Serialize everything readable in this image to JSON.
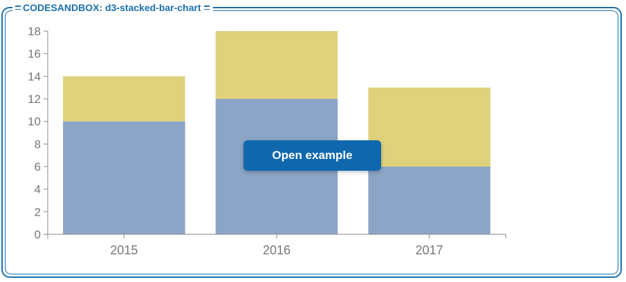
{
  "header": {
    "title": "CODESANDBOX: d3-stacked-bar-chart"
  },
  "overlay": {
    "open_label": "Open example"
  },
  "colors": {
    "frame": "#1a6fb0",
    "button": "#0f68ad",
    "series_bottom": "#8ca5c6",
    "series_top": "#e0d17d",
    "axis": "#8a8a8a",
    "tick_text": "#777777"
  },
  "chart_data": {
    "type": "bar",
    "stacked": true,
    "categories": [
      "2015",
      "2016",
      "2017"
    ],
    "series": [
      {
        "values": [
          10,
          12,
          6
        ],
        "color": "#8ca5c6"
      },
      {
        "values": [
          4,
          6,
          7
        ],
        "color": "#e0d17d"
      }
    ],
    "ylim": [
      0,
      18
    ],
    "yticks": [
      "0",
      "2",
      "4",
      "6",
      "8",
      "10",
      "12",
      "14",
      "16",
      "18"
    ],
    "grid": false,
    "legend": "none"
  }
}
